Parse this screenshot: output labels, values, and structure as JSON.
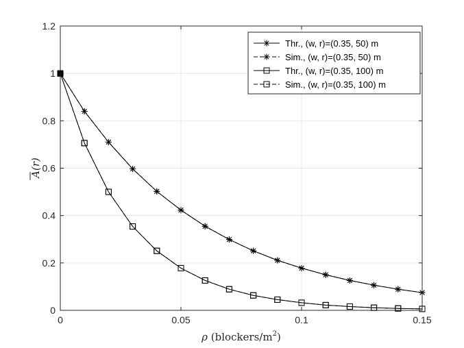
{
  "chart_data": {
    "type": "line",
    "xlabel_main": "ρ",
    "xlabel_unit": " (blockers/m",
    "xlabel_sup": "2",
    "xlabel_close": ")",
    "ylabel": "A(r)",
    "xlim": [
      0,
      0.15
    ],
    "ylim": [
      0,
      1.2
    ],
    "x_ticks": [
      "0",
      "0.05",
      "0.1",
      "0.15"
    ],
    "y_ticks": [
      "0",
      "0.2",
      "0.4",
      "0.6",
      "0.8",
      "1",
      "1.2"
    ],
    "grid": true,
    "legend_position": "top-right",
    "x": [
      0,
      0.01,
      0.02,
      0.03,
      0.04,
      0.05,
      0.06,
      0.07,
      0.08,
      0.09,
      0.1,
      0.11,
      0.12,
      0.13,
      0.14,
      0.15
    ],
    "series": [
      {
        "name": "Thr., (w, r)=(0.35, 50) m",
        "marker": "asterisk",
        "linestyle": "solid",
        "values": [
          1,
          0.84,
          0.71,
          0.597,
          0.502,
          0.423,
          0.355,
          0.299,
          0.251,
          0.211,
          0.178,
          0.15,
          0.126,
          0.106,
          0.089,
          0.075
        ]
      },
      {
        "name": "Sim., (w, r)=(0.35, 50) m",
        "marker": "asterisk",
        "linestyle": "dashed",
        "values": [
          1,
          0.84,
          0.71,
          0.597,
          0.502,
          0.423,
          0.355,
          0.299,
          0.251,
          0.211,
          0.178,
          0.15,
          0.126,
          0.106,
          0.089,
          0.075
        ]
      },
      {
        "name": "Thr., (w, r)=(0.35, 100) m",
        "marker": "square",
        "linestyle": "solid",
        "values": [
          1,
          0.706,
          0.5,
          0.354,
          0.251,
          0.178,
          0.126,
          0.089,
          0.063,
          0.045,
          0.032,
          0.022,
          0.016,
          0.011,
          0.008,
          0.006
        ]
      },
      {
        "name": "Sim., (w, r)=(0.35, 100) m",
        "marker": "square",
        "linestyle": "dashed",
        "values": [
          1,
          0.706,
          0.5,
          0.354,
          0.251,
          0.178,
          0.126,
          0.089,
          0.063,
          0.045,
          0.032,
          0.022,
          0.016,
          0.011,
          0.008,
          0.006
        ]
      }
    ]
  }
}
